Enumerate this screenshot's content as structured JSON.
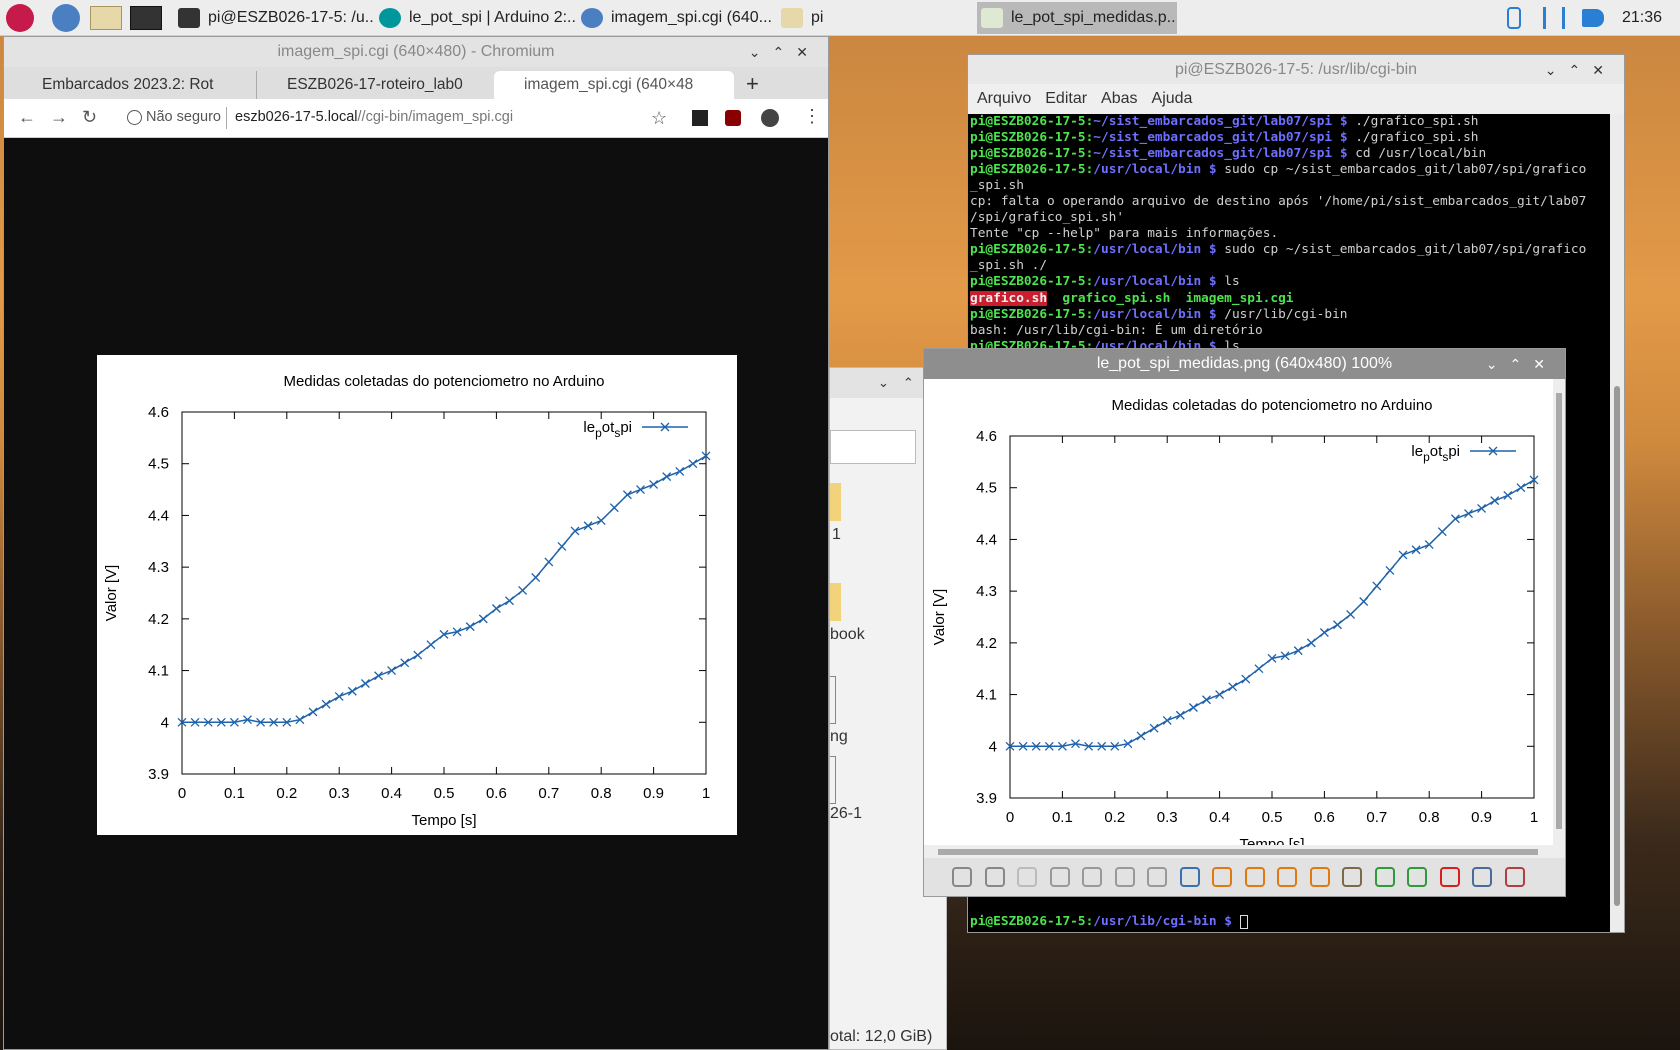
{
  "taskbar": {
    "tasks": [
      "pi@ESZB026-17-5: /u...",
      "le_pot_spi | Arduino 2:...",
      "imagem_spi.cgi (640...",
      "pi",
      "le_pot_spi_medidas.p..."
    ],
    "clock": "21:36"
  },
  "browser": {
    "title": "imagem_spi.cgi (640×480) - Chromium",
    "tabs": [
      "Embarcados 2023.2: Rot",
      "ESZB026-17-roteiro_lab0",
      "imagem_spi.cgi (640×48"
    ],
    "security": "Não seguro",
    "url_host": "eszb026-17-5.local",
    "url_path": "//cgi-bin/imagem_spi.cgi"
  },
  "file_manager": {
    "fragments": [
      "1",
      "book",
      "ng",
      "26-1"
    ],
    "status": "otal: 12,0 GiB)"
  },
  "terminal": {
    "title": "pi@ESZB026-17-5: /usr/lib/cgi-bin",
    "menu": [
      "Arquivo",
      "Editar",
      "Abas",
      "Ajuda"
    ],
    "lines": [
      {
        "prompt": "pi@ESZB026-17-5:",
        "path": "~/sist_embarcados_git/lab07/spi $",
        "command": "./grafico_spi.sh"
      },
      {
        "prompt": "pi@ESZB026-17-5:",
        "path": "~/sist_embarcados_git/lab07/spi $",
        "command": "./grafico_spi.sh"
      },
      {
        "prompt": "pi@ESZB026-17-5:",
        "path": "~/sist_embarcados_git/lab07/spi $",
        "command": "cd /usr/local/bin"
      },
      {
        "prompt": "pi@ESZB026-17-5:",
        "path": "/usr/local/bin $",
        "command": "sudo cp ~/sist_embarcados_git/lab07/spi/grafico"
      },
      {
        "text": "_spi.sh"
      },
      {
        "text": "cp: falta o operando arquivo de destino após '/home/pi/sist_embarcados_git/lab07"
      },
      {
        "text": "/spi/grafico_spi.sh'"
      },
      {
        "text": "Tente \"cp --help\" para mais informações."
      },
      {
        "prompt": "pi@ESZB026-17-5:",
        "path": "/usr/local/bin $",
        "command": "sudo cp ~/sist_embarcados_git/lab07/spi/grafico"
      },
      {
        "text": "_spi.sh ./"
      },
      {
        "prompt": "pi@ESZB026-17-5:",
        "path": "/usr/local/bin $",
        "command": "ls"
      },
      {
        "files": [
          "grafico.sh",
          "grafico_spi.sh",
          "imagem_spi.cgi"
        ]
      },
      {
        "prompt": "pi@ESZB026-17-5:",
        "path": "/usr/local/bin $",
        "command": "/usr/lib/cgi-bin"
      },
      {
        "text": "bash: /usr/lib/cgi-bin: É um diretório"
      },
      {
        "prompt": "pi@ESZB026-17-5:",
        "path": "/usr/local/bin $",
        "command": "ls"
      }
    ],
    "last_prompt": {
      "prompt": "pi@ESZB026-17-5:",
      "path": "/usr/lib/cgi-bin $"
    }
  },
  "viewer": {
    "title": "le_pot_spi_medidas.png (640x480) 100%"
  },
  "chart_data": [
    {
      "type": "line",
      "title": "Medidas coletadas do potenciometro no Arduino",
      "x_label": "Tempo [s]",
      "y_label": "Valor [V]",
      "x": [
        0,
        0.025,
        0.05,
        0.075,
        0.1,
        0.125,
        0.15,
        0.175,
        0.2,
        0.225,
        0.25,
        0.275,
        0.3,
        0.325,
        0.35,
        0.375,
        0.4,
        0.425,
        0.45,
        0.475,
        0.5,
        0.525,
        0.55,
        0.575,
        0.6,
        0.625,
        0.65,
        0.675,
        0.7,
        0.725,
        0.75,
        0.775,
        0.8,
        0.825,
        0.85,
        0.875,
        0.9,
        0.925,
        0.95,
        0.975,
        1
      ],
      "series": [
        {
          "name": "le_pot_spi",
          "color": "#1f62aa",
          "values": [
            4.0,
            4.0,
            4.0,
            4.0,
            4.0,
            4.005,
            4.0,
            4.0,
            4.0,
            4.005,
            4.02,
            4.035,
            4.05,
            4.06,
            4.075,
            4.09,
            4.1,
            4.115,
            4.13,
            4.15,
            4.17,
            4.175,
            4.185,
            4.2,
            4.22,
            4.235,
            4.255,
            4.28,
            4.31,
            4.34,
            4.37,
            4.38,
            4.39,
            4.415,
            4.44,
            4.45,
            4.46,
            4.475,
            4.485,
            4.5,
            4.515
          ]
        }
      ],
      "xlim": [
        0,
        1
      ],
      "ylim": [
        3.9,
        4.6
      ],
      "xticks": [
        0,
        0.1,
        0.2,
        0.3,
        0.4,
        0.5,
        0.6,
        0.7,
        0.8,
        0.9,
        1
      ],
      "yticks": [
        3.9,
        4,
        4.1,
        4.2,
        4.3,
        4.4,
        4.5,
        4.6
      ],
      "legend": "upper right"
    },
    {
      "type": "line",
      "title": "Medidas coletadas do potenciometro no Arduino",
      "x_label": "Tempo [s]",
      "y_label": "Valor [V]",
      "x": [
        0,
        0.025,
        0.05,
        0.075,
        0.1,
        0.125,
        0.15,
        0.175,
        0.2,
        0.225,
        0.25,
        0.275,
        0.3,
        0.325,
        0.35,
        0.375,
        0.4,
        0.425,
        0.45,
        0.475,
        0.5,
        0.525,
        0.55,
        0.575,
        0.6,
        0.625,
        0.65,
        0.675,
        0.7,
        0.725,
        0.75,
        0.775,
        0.8,
        0.825,
        0.85,
        0.875,
        0.9,
        0.925,
        0.95,
        0.975,
        1
      ],
      "series": [
        {
          "name": "le_pot_spi",
          "color": "#1f62aa",
          "values": [
            4.0,
            4.0,
            4.0,
            4.0,
            4.0,
            4.005,
            4.0,
            4.0,
            4.0,
            4.005,
            4.02,
            4.035,
            4.05,
            4.06,
            4.075,
            4.09,
            4.1,
            4.115,
            4.13,
            4.15,
            4.17,
            4.175,
            4.185,
            4.2,
            4.22,
            4.235,
            4.255,
            4.28,
            4.31,
            4.34,
            4.37,
            4.38,
            4.39,
            4.415,
            4.44,
            4.45,
            4.46,
            4.475,
            4.485,
            4.5,
            4.515
          ]
        }
      ],
      "xlim": [
        0,
        1
      ],
      "ylim": [
        3.9,
        4.6
      ],
      "xticks": [
        0,
        0.1,
        0.2,
        0.3,
        0.4,
        0.5,
        0.6,
        0.7,
        0.8,
        0.9,
        1
      ],
      "yticks": [
        3.9,
        4,
        4.1,
        4.2,
        4.3,
        4.4,
        4.5,
        4.6
      ],
      "legend": "upper right"
    }
  ]
}
